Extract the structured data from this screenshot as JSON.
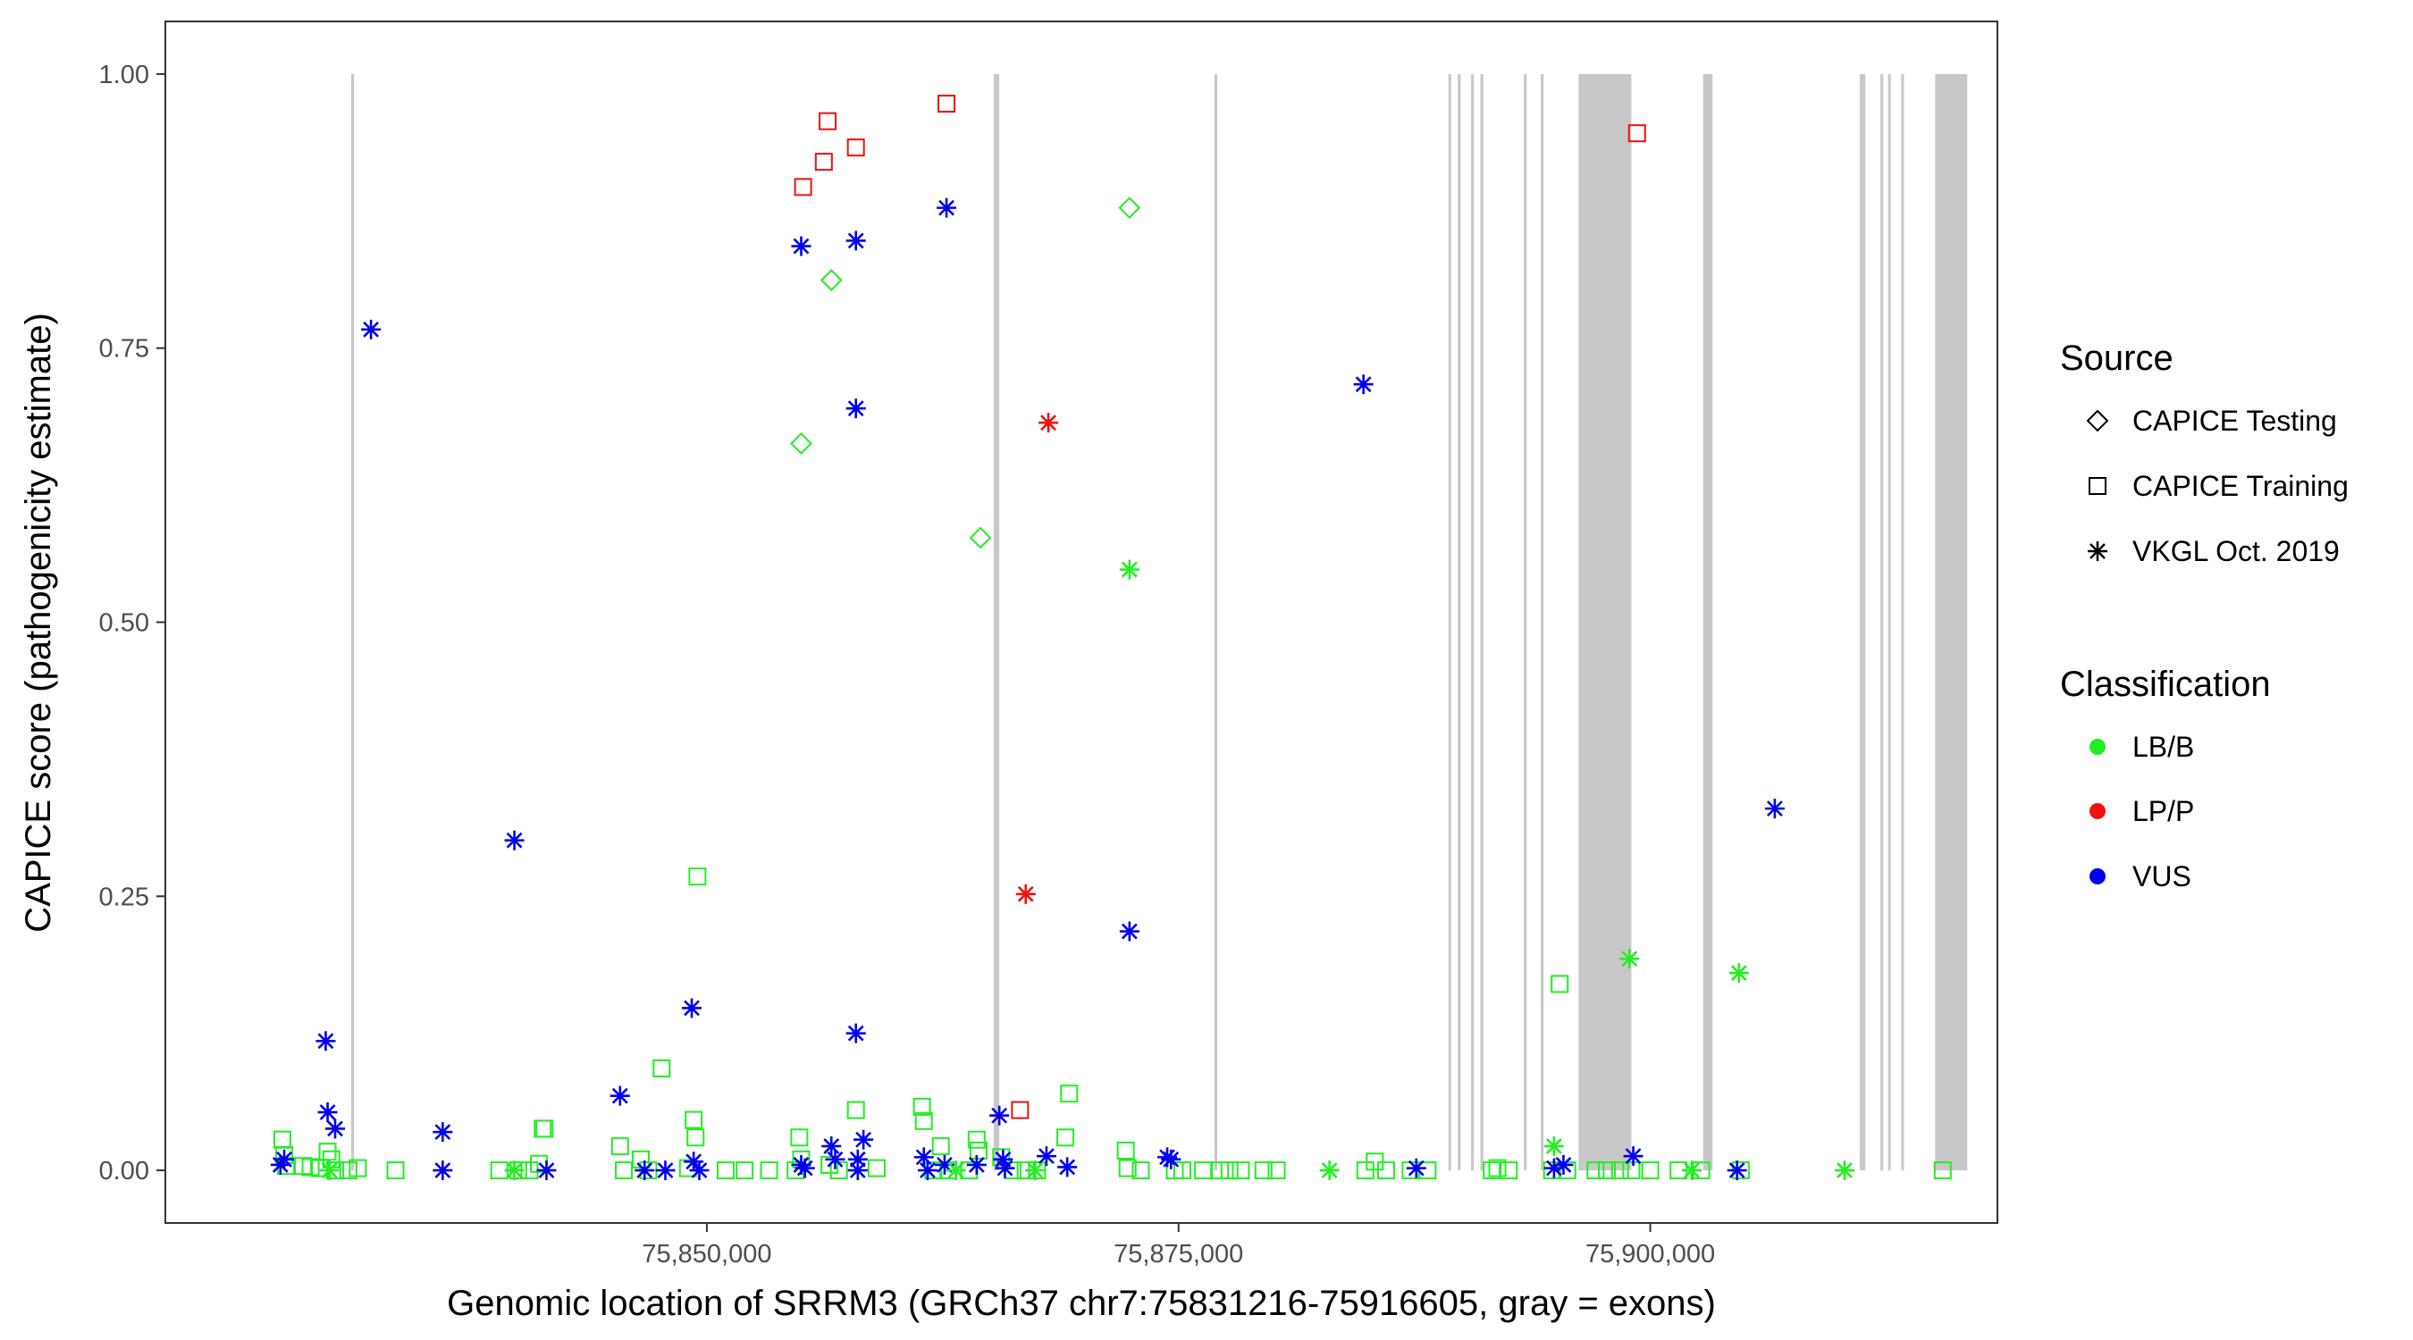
{
  "chart_data": {
    "type": "scatter",
    "title": "",
    "xlabel": "Genomic location of SRRM3 (GRCh37 chr7:75831216-75916605, gray = exons)",
    "ylabel": "CAPICE score (pathogenicity estimate)",
    "xlim": [
      75821300,
      75918400
    ],
    "ylim": [
      -0.048,
      1.048
    ],
    "x_ticks": [
      75850000,
      75875000,
      75900000
    ],
    "x_tick_labels": [
      "75,850,000",
      "75,875,000",
      "75,900,000"
    ],
    "y_ticks": [
      0,
      0.25,
      0.5,
      0.75,
      1
    ],
    "y_tick_labels": [
      "0.00",
      "0.25",
      "0.50",
      "0.75",
      "1.00"
    ],
    "grid": false,
    "exon_color": "#c8c8c8",
    "exons": [
      [
        75831150,
        75831300
      ],
      [
        75865200,
        75865500
      ],
      [
        75876900,
        75877050
      ],
      [
        75889300,
        75889450
      ],
      [
        75889800,
        75889950
      ],
      [
        75890500,
        75890650
      ],
      [
        75891000,
        75891150
      ],
      [
        75893300,
        75893450
      ],
      [
        75894200,
        75894350
      ],
      [
        75896200,
        75899000
      ],
      [
        75902800,
        75903300
      ],
      [
        75911100,
        75911400
      ],
      [
        75912200,
        75912350
      ],
      [
        75912600,
        75912750
      ],
      [
        75913300,
        75913450
      ],
      [
        75915100,
        75916800
      ]
    ],
    "legend_position": "right",
    "legend": {
      "source_title": "Source",
      "source_items": [
        {
          "label": "CAPICE Testing",
          "shape": "diamond"
        },
        {
          "label": "CAPICE Training",
          "shape": "square"
        },
        {
          "label": "VKGL Oct. 2019",
          "shape": "asterisk"
        }
      ],
      "class_title": "Classification",
      "class_items": [
        {
          "label": "LB/B",
          "color": "#22ee22"
        },
        {
          "label": "LP/P",
          "color": "#ee1111"
        },
        {
          "label": "VUS",
          "color": "#0000ee"
        }
      ]
    },
    "series": [
      {
        "source": "CAPICE Testing",
        "classification": "LB/B",
        "points": [
          [
            75855000,
            0.663
          ],
          [
            75856600,
            0.812
          ],
          [
            75864500,
            0.577
          ],
          [
            75872400,
            0.878
          ]
        ]
      },
      {
        "source": "CAPICE Training",
        "classification": "LP/P",
        "points": [
          [
            75855100,
            0.897
          ],
          [
            75856200,
            0.92
          ],
          [
            75856400,
            0.957
          ],
          [
            75857900,
            0.933
          ],
          [
            75862700,
            0.973
          ],
          [
            75866600,
            0.055
          ],
          [
            75899300,
            0.946
          ]
        ]
      },
      {
        "source": "CAPICE Training",
        "classification": "LB/B",
        "points": [
          [
            75827500,
            0.028
          ],
          [
            75827600,
            0.014
          ],
          [
            75827700,
            0.004
          ],
          [
            75828600,
            0.004
          ],
          [
            75829000,
            0.003
          ],
          [
            75829500,
            0.002
          ],
          [
            75829900,
            0.017
          ],
          [
            75830100,
            0.01
          ],
          [
            75830300,
            0.0
          ],
          [
            75831000,
            0.0
          ],
          [
            75831500,
            0.002
          ],
          [
            75833500,
            0.0
          ],
          [
            75839000,
            0.0
          ],
          [
            75840000,
            0.0
          ],
          [
            75840600,
            0.0
          ],
          [
            75841100,
            0.006
          ],
          [
            75841300,
            0.038
          ],
          [
            75841400,
            0.038
          ],
          [
            75845400,
            0.022
          ],
          [
            75845600,
            0.0
          ],
          [
            75846500,
            0.01
          ],
          [
            75846900,
            0.0
          ],
          [
            75847600,
            0.093
          ],
          [
            75849000,
            0.002
          ],
          [
            75849300,
            0.046
          ],
          [
            75849400,
            0.03
          ],
          [
            75849500,
            0.268
          ],
          [
            75851000,
            0.0
          ],
          [
            75852000,
            0.0
          ],
          [
            75853300,
            0.0
          ],
          [
            75854700,
            0.0
          ],
          [
            75854900,
            0.03
          ],
          [
            75855000,
            0.01
          ],
          [
            75856500,
            0.005
          ],
          [
            75857000,
            0.0
          ],
          [
            75857900,
            0.055
          ],
          [
            75859000,
            0.002
          ],
          [
            75861400,
            0.058
          ],
          [
            75861500,
            0.045
          ],
          [
            75862000,
            0.0
          ],
          [
            75862400,
            0.022
          ],
          [
            75862800,
            0.0
          ],
          [
            75863900,
            0.0
          ],
          [
            75864300,
            0.028
          ],
          [
            75864400,
            0.018
          ],
          [
            75865600,
            0.012
          ],
          [
            75866200,
            0.0
          ],
          [
            75866900,
            0.0
          ],
          [
            75867500,
            0.0
          ],
          [
            75869000,
            0.03
          ],
          [
            75869200,
            0.07
          ],
          [
            75872200,
            0.018
          ],
          [
            75872300,
            0.002
          ],
          [
            75873000,
            0.0
          ],
          [
            75874800,
            0.0
          ],
          [
            75875200,
            0.0
          ],
          [
            75876300,
            0.0
          ],
          [
            75877200,
            0.0
          ],
          [
            75877700,
            0.0
          ],
          [
            75878300,
            0.0
          ],
          [
            75879500,
            0.0
          ],
          [
            75880200,
            0.0
          ],
          [
            75884900,
            0.0
          ],
          [
            75885400,
            0.008
          ],
          [
            75886000,
            0.0
          ],
          [
            75887300,
            0.0
          ],
          [
            75888200,
            0.0
          ],
          [
            75891600,
            0.0
          ],
          [
            75891900,
            0.002
          ],
          [
            75892500,
            0.0
          ],
          [
            75894800,
            0.0
          ],
          [
            75895200,
            0.17
          ],
          [
            75895600,
            0.0
          ],
          [
            75897100,
            0.0
          ],
          [
            75897700,
            0.0
          ],
          [
            75898400,
            0.0
          ],
          [
            75899000,
            0.0
          ],
          [
            75900000,
            0.0
          ],
          [
            75901500,
            0.0
          ],
          [
            75902700,
            0.0
          ],
          [
            75904800,
            0.0
          ],
          [
            75915500,
            0.0
          ]
        ]
      },
      {
        "source": "VKGL Oct. 2019",
        "classification": "VUS",
        "points": [
          [
            75827400,
            0.005
          ],
          [
            75827600,
            0.01
          ],
          [
            75829800,
            0.118
          ],
          [
            75829900,
            0.053
          ],
          [
            75830300,
            0.038
          ],
          [
            75832200,
            0.767
          ],
          [
            75836000,
            0.035
          ],
          [
            75836000,
            0.0
          ],
          [
            75839800,
            0.301
          ],
          [
            75841500,
            0.0
          ],
          [
            75845400,
            0.068
          ],
          [
            75846700,
            0.0
          ],
          [
            75847800,
            0.0
          ],
          [
            75849200,
            0.148
          ],
          [
            75849300,
            0.008
          ],
          [
            75849600,
            0.0
          ],
          [
            75855000,
            0.843
          ],
          [
            75855000,
            0.005
          ],
          [
            75855200,
            0.002
          ],
          [
            75856600,
            0.022
          ],
          [
            75856800,
            0.01
          ],
          [
            75857900,
            0.848
          ],
          [
            75857900,
            0.695
          ],
          [
            75857900,
            0.125
          ],
          [
            75858000,
            0.01
          ],
          [
            75858000,
            0.0
          ],
          [
            75858300,
            0.028
          ],
          [
            75861500,
            0.012
          ],
          [
            75861700,
            0.0
          ],
          [
            75862600,
            0.005
          ],
          [
            75862700,
            0.878
          ],
          [
            75864300,
            0.005
          ],
          [
            75865500,
            0.05
          ],
          [
            75865700,
            0.01
          ],
          [
            75865800,
            0.002
          ],
          [
            75868000,
            0.013
          ],
          [
            75869100,
            0.003
          ],
          [
            75872400,
            0.218
          ],
          [
            75874400,
            0.012
          ],
          [
            75874600,
            0.01
          ],
          [
            75884800,
            0.717
          ],
          [
            75887600,
            0.002
          ],
          [
            75894900,
            0.002
          ],
          [
            75895400,
            0.005
          ],
          [
            75899100,
            0.013
          ],
          [
            75904600,
            0.0
          ],
          [
            75906600,
            0.33
          ]
        ]
      },
      {
        "source": "VKGL Oct. 2019",
        "classification": "LP/P",
        "points": [
          [
            75866900,
            0.252
          ],
          [
            75868100,
            0.682
          ]
        ]
      },
      {
        "source": "VKGL Oct. 2019",
        "classification": "LB/B",
        "points": [
          [
            75830000,
            0.0
          ],
          [
            75839800,
            0.0
          ],
          [
            75863200,
            0.0
          ],
          [
            75867400,
            0.0
          ],
          [
            75872400,
            0.548
          ],
          [
            75883000,
            0.0
          ],
          [
            75894900,
            0.022
          ],
          [
            75898900,
            0.193
          ],
          [
            75902200,
            0.0
          ],
          [
            75904700,
            0.18
          ],
          [
            75910300,
            0.0
          ]
        ]
      }
    ]
  }
}
